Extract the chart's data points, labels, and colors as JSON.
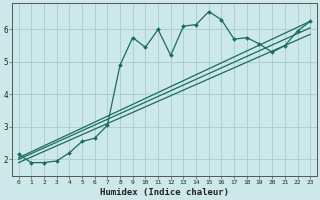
{
  "title": "",
  "xlabel": "Humidex (Indice chaleur)",
  "ylabel": "",
  "background_color": "#cce8e8",
  "grid_color": "#aacccc",
  "line_color": "#1a6b60",
  "xlim": [
    -0.5,
    23.5
  ],
  "ylim": [
    1.5,
    6.8
  ],
  "yticks": [
    2,
    3,
    4,
    5,
    6
  ],
  "xticks": [
    0,
    1,
    2,
    3,
    4,
    5,
    6,
    7,
    8,
    9,
    10,
    11,
    12,
    13,
    14,
    15,
    16,
    17,
    18,
    19,
    20,
    21,
    22,
    23
  ],
  "main_line_x": [
    0,
    1,
    2,
    3,
    4,
    5,
    6,
    7,
    8,
    9,
    10,
    11,
    12,
    13,
    14,
    15,
    16,
    17,
    18,
    19,
    20,
    21,
    22,
    23
  ],
  "main_line_y": [
    2.15,
    1.9,
    1.9,
    1.95,
    2.2,
    2.55,
    2.65,
    3.05,
    4.9,
    5.75,
    5.45,
    6.0,
    5.2,
    6.1,
    6.15,
    6.55,
    6.3,
    5.7,
    5.75,
    5.55,
    5.3,
    5.5,
    5.95,
    6.25
  ],
  "line1_x": [
    0,
    23
  ],
  "line1_y": [
    2.05,
    6.25
  ],
  "line2_x": [
    0,
    23
  ],
  "line2_y": [
    2.0,
    6.05
  ],
  "line3_x": [
    0,
    23
  ],
  "line3_y": [
    1.9,
    5.85
  ]
}
